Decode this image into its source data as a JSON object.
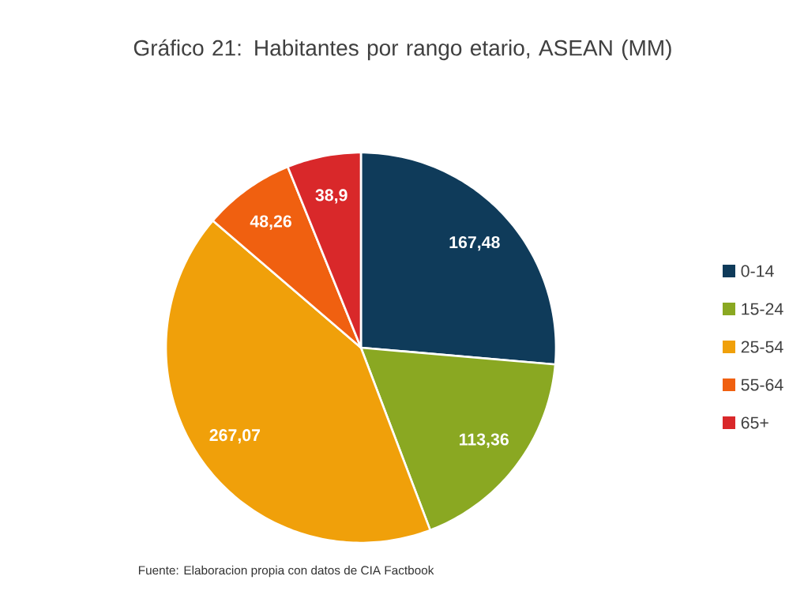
{
  "chart_data": {
    "type": "pie",
    "title": "Gráfico 21: Habitantes por rango etario, ASEAN (MM)",
    "categories": [
      "0-14",
      "15-24",
      "25-54",
      "55-64",
      "65+"
    ],
    "values": [
      167.48,
      113.36,
      267.07,
      48.26,
      38.9
    ],
    "value_labels": [
      "167,48",
      "113,36",
      "267,07",
      "48,26",
      "38,9"
    ],
    "colors": [
      "#0f3b5a",
      "#8aa822",
      "#f0a00a",
      "#f06010",
      "#d9282a"
    ],
    "legend": "right",
    "annotations": [
      "Fuente: Elaboracion propia con datos de CIA Factbook"
    ]
  }
}
